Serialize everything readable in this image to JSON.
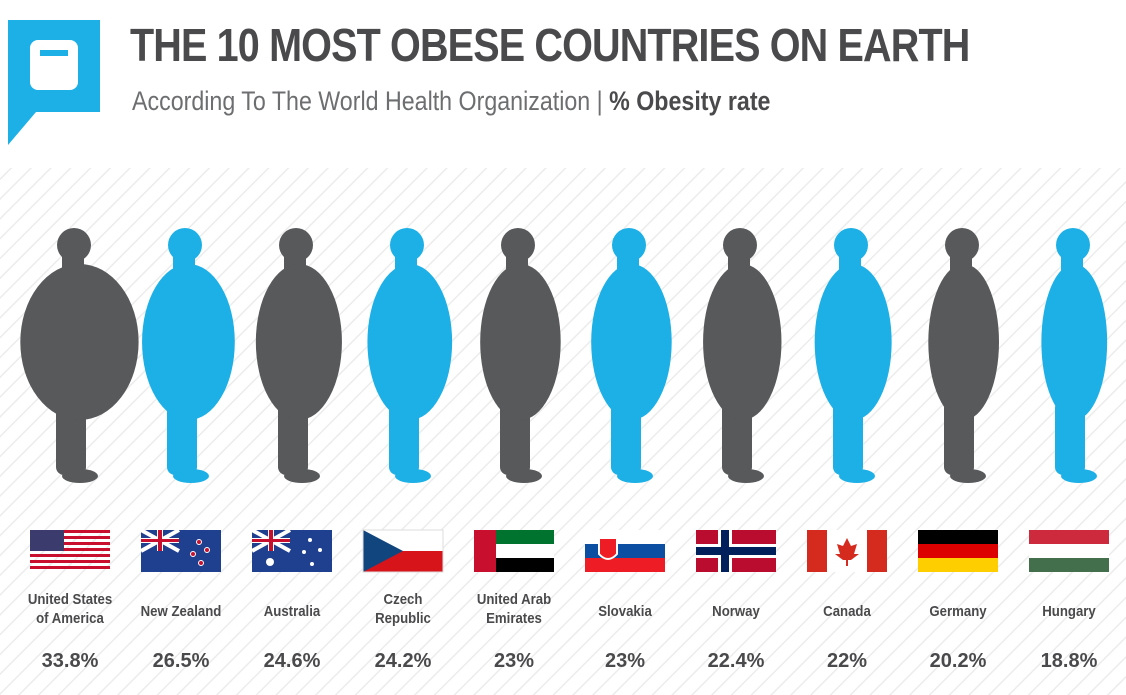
{
  "chart_data": {
    "type": "pictograph",
    "title": "THE 10 MOST OBESE COUNTRIES ON EARTH",
    "subtitle": "According To The World Health Organization |",
    "subtitle_emphasis": "% Obesity rate",
    "categories": [
      "United States of America",
      "New Zealand",
      "Australia",
      "Czech Republic",
      "United Arab Emirates",
      "Slovakia",
      "Norway",
      "Canada",
      "Germany",
      "Hungary"
    ],
    "values": [
      33.8,
      26.5,
      24.6,
      24.2,
      23,
      23,
      22.4,
      22,
      20.2,
      18.8
    ],
    "value_labels": [
      "33.8%",
      "26.5%",
      "24.6%",
      "24.2%",
      "23%",
      "23%",
      "22.4%",
      "22%",
      "20.2%",
      "18.8%"
    ],
    "colors": [
      "#58595b",
      "#1cb0e6"
    ]
  }
}
